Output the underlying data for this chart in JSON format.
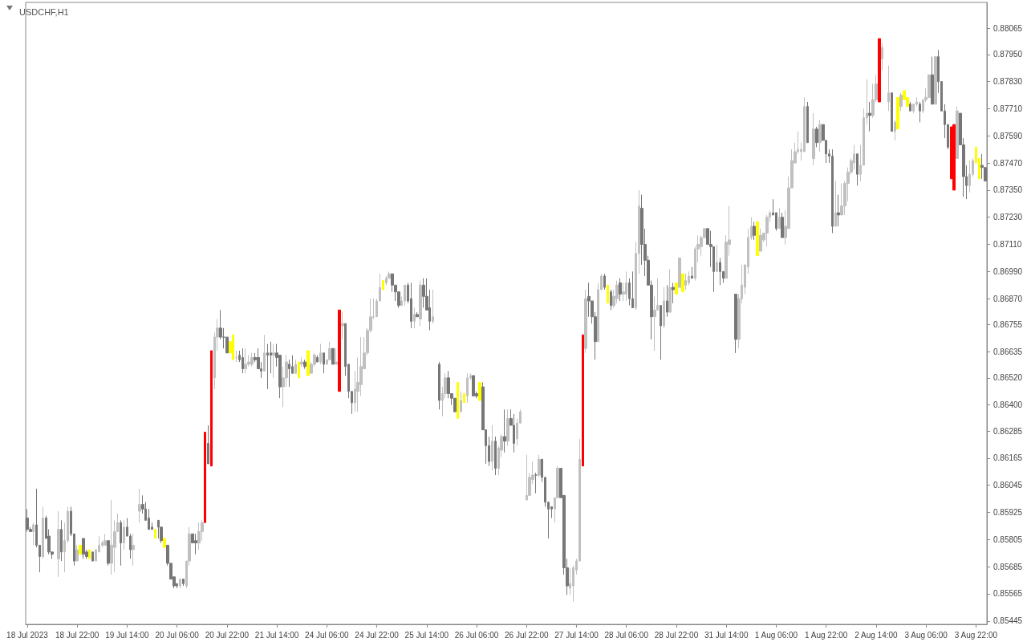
{
  "chart_data": {
    "type": "candlestick",
    "title": "USDCHF,H1",
    "categories": [
      "18 Jul 2023",
      null,
      null,
      null,
      null,
      null,
      null,
      null,
      null,
      null,
      null,
      null,
      null,
      null,
      null,
      null,
      "18 Jul 22:00",
      null,
      null,
      null,
      null,
      null,
      null,
      null,
      null,
      null,
      null,
      null,
      null,
      null,
      null,
      null,
      "19 Jul 14:00",
      null,
      null,
      null,
      null,
      null,
      null,
      null,
      null,
      null,
      null,
      null,
      null,
      null,
      null,
      null,
      "20 Jul 06:00",
      null,
      null,
      null,
      null,
      null,
      null,
      null,
      null,
      null,
      null,
      null,
      null,
      null,
      null,
      null,
      "20 Jul 22:00",
      null,
      null,
      null,
      null,
      null,
      null,
      null,
      null,
      null,
      null,
      null,
      null,
      null,
      null,
      null,
      "21 Jul 14:00",
      null,
      null,
      null,
      null,
      null,
      null,
      null,
      null,
      null,
      null,
      null,
      null,
      null,
      null,
      null,
      "24 Jul 06:00",
      null,
      null,
      null,
      null,
      null,
      null,
      null,
      null,
      null,
      null,
      null,
      null,
      null,
      null,
      null,
      "24 Jul 22:00",
      null,
      null,
      null,
      null,
      null,
      null,
      null,
      null,
      null,
      null,
      null,
      null,
      null,
      null,
      null,
      "25 Jul 14:00",
      null,
      null,
      null,
      null,
      null,
      null,
      null,
      null,
      null,
      null,
      null,
      null,
      null,
      null,
      null,
      "26 Jul 06:00",
      null,
      null,
      null,
      null,
      null,
      null,
      null,
      null,
      null,
      null,
      null,
      null,
      null,
      null,
      null,
      "26 Jul 22:00",
      null,
      null,
      null,
      null,
      null,
      null,
      null,
      null,
      null,
      null,
      null,
      null,
      null,
      null,
      null,
      "27 Jul 14:00",
      null,
      null,
      null,
      null,
      null,
      null,
      null,
      null,
      null,
      null,
      null,
      null,
      null,
      null,
      null,
      "28 Jul 06:00",
      null,
      null,
      null,
      null,
      null,
      null,
      null,
      null,
      null,
      null,
      null,
      null,
      null,
      null,
      null,
      "28 Jul 22:00",
      null,
      null,
      null,
      null,
      null,
      null,
      null,
      null,
      null,
      null,
      null,
      null,
      null,
      null,
      null,
      "31 Jul 14:00",
      null,
      null,
      null,
      null,
      null,
      null,
      null,
      null,
      null,
      null,
      null,
      null,
      null,
      null,
      null,
      "1 Aug 06:00",
      null,
      null,
      null,
      null,
      null,
      null,
      null,
      null,
      null,
      null,
      null,
      null,
      null,
      null,
      null,
      "1 Aug 22:00",
      null,
      null,
      null,
      null,
      null,
      null,
      null,
      null,
      null,
      null,
      null,
      null,
      null,
      null,
      null,
      "2 Aug 14:00",
      null,
      null,
      null,
      null,
      null,
      null,
      null,
      null,
      null,
      null,
      null,
      null,
      null,
      null,
      null,
      "3 Aug 06:00",
      null,
      null,
      null,
      null,
      null,
      null,
      null,
      null,
      null,
      null,
      null,
      null,
      null,
      null,
      null,
      "3 Aug 22:00",
      null,
      null,
      null
    ],
    "ohlc": [
      [
        0.859,
        0.8594,
        0.8584,
        0.8585
      ],
      [
        0.8585,
        0.8586,
        0.8584,
        0.8584
      ],
      [
        0.8584,
        0.8588,
        0.8578,
        0.8587
      ],
      [
        0.8587,
        0.8603,
        0.8577,
        0.8578
      ],
      [
        0.8578,
        0.8578,
        0.8566,
        0.8573
      ],
      [
        0.8573,
        0.8595,
        0.8572,
        0.859
      ],
      [
        0.859,
        0.8591,
        0.8581,
        0.8581
      ],
      [
        0.8582,
        0.8585,
        0.8574,
        0.8575
      ],
      [
        0.8575,
        0.8575,
        0.8572,
        0.8574
      ],
      null,
      [
        0.8572,
        0.8593,
        0.8564,
        0.8585
      ],
      [
        0.8585,
        0.8589,
        0.8571,
        0.8575
      ],
      [
        0.8575,
        0.8588,
        0.8566,
        0.858
      ],
      [
        0.858,
        0.8595,
        0.8579,
        0.8593
      ],
      [
        0.8593,
        0.8595,
        0.8582,
        0.8583
      ],
      [
        0.8583,
        0.8583,
        0.8569,
        0.8571
      ],
      [
        0.8571,
        0.8578,
        0.8571,
        0.8576
      ],
      [
        0.8578,
        0.8578,
        0.8574,
        0.8574
      ],
      [
        0.8581,
        0.8581,
        0.8572,
        0.8574
      ],
      [
        0.8575,
        0.8576,
        0.8572,
        0.8573
      ],
      [
        0.8576,
        0.8576,
        0.8572,
        0.8572
      ],
      [
        0.8575,
        0.8575,
        0.8571,
        0.8571
      ],
      [
        0.8571,
        0.8576,
        0.8571,
        0.8576
      ],
      [
        0.8575,
        0.8582,
        0.8575,
        0.8578
      ],
      [
        0.8578,
        0.858,
        0.8577,
        0.8579
      ],
      [
        0.8578,
        0.8583,
        0.8578,
        0.858
      ],
      [
        0.858,
        0.858,
        0.8569,
        0.857
      ],
      [
        0.857,
        0.8598,
        0.8565,
        0.8578
      ],
      [
        0.8577,
        0.8589,
        0.8566,
        0.8584
      ],
      [
        0.8584,
        0.8592,
        0.8584,
        0.8588
      ],
      [
        0.8588,
        0.8589,
        0.8569,
        0.8579
      ],
      [
        0.8579,
        0.8589,
        0.8576,
        0.8586
      ],
      [
        0.8586,
        0.859,
        0.8582,
        0.8582
      ],
      [
        0.8582,
        0.8583,
        0.8572,
        0.8576
      ],
      [
        0.8576,
        0.8583,
        0.8569,
        0.8578
      ],
      null,
      [
        0.8593,
        0.8603,
        0.8588,
        0.8596
      ],
      [
        0.8596,
        0.86,
        0.8592,
        0.8594
      ],
      [
        0.8594,
        0.8597,
        0.8589,
        0.8589
      ],
      [
        0.859,
        0.8594,
        0.8585,
        0.8585
      ],
      [
        0.8586,
        0.8588,
        0.8585,
        0.8585
      ],
      [
        0.8585,
        0.8585,
        0.8581,
        0.8581
      ],
      [
        0.8589,
        0.8589,
        0.8581,
        0.8586
      ],
      [
        0.8586,
        0.8586,
        0.8579,
        0.858
      ],
      [
        0.8581,
        0.8581,
        0.8577,
        0.8577
      ],
      [
        0.8578,
        0.8578,
        0.8569,
        0.857
      ],
      [
        0.857,
        0.857,
        0.8563,
        0.8563
      ],
      [
        0.8564,
        0.8564,
        0.8559,
        0.856
      ],
      [
        0.8561,
        0.8561,
        0.8559,
        0.856
      ],
      [
        0.856,
        0.8563,
        0.8559,
        0.8563
      ],
      [
        0.8563,
        0.8563,
        0.856,
        0.8561
      ],
      [
        0.856,
        0.8571,
        0.8559,
        0.8571
      ],
      [
        0.8571,
        0.8586,
        0.8569,
        0.8583
      ],
      [
        0.8583,
        0.8583,
        0.8579,
        0.8579
      ],
      [
        0.858,
        0.8583,
        0.8574,
        0.8579
      ],
      [
        0.8579,
        0.8588,
        0.8576,
        0.8584
      ],
      [
        0.8584,
        0.8589,
        0.858,
        0.8588
      ],
      [
        0.8588,
        0.8628,
        0.8588,
        0.8628
      ],
      [
        0.8623,
        0.8631,
        0.8614,
        0.8614
      ],
      [
        0.8613,
        0.8664,
        0.8613,
        0.8664
      ],
      [
        0.8652,
        0.8672,
        0.8647,
        0.867
      ],
      [
        0.867,
        0.8678,
        0.8664,
        0.8674
      ],
      [
        0.8674,
        0.8682,
        0.8669,
        0.867
      ],
      [
        0.867,
        0.8674,
        0.8665,
        0.867
      ],
      [
        0.867,
        0.867,
        0.8663,
        0.8663
      ],
      [
        0.8663,
        0.8668,
        0.8663,
        0.8668
      ],
      [
        0.8671,
        0.8671,
        0.866,
        0.866
      ],
      [
        0.8661,
        0.8664,
        0.8659,
        0.8661
      ],
      [
        0.8662,
        0.8664,
        0.8659,
        0.866
      ],
      [
        0.8661,
        0.8665,
        0.8654,
        0.8656
      ],
      [
        0.8656,
        0.8665,
        0.8654,
        0.8658
      ],
      [
        0.8658,
        0.8662,
        0.8657,
        0.8659
      ],
      [
        0.8658,
        0.8663,
        0.8657,
        0.8661
      ],
      [
        0.8661,
        0.8663,
        0.8659,
        0.866
      ],
      [
        0.8661,
        0.8665,
        0.8656,
        0.8656
      ],
      [
        0.8656,
        0.8659,
        0.8652,
        0.8655
      ],
      [
        0.8655,
        0.8671,
        0.8655,
        0.8663
      ],
      [
        0.8663,
        0.8667,
        0.8647,
        0.8662
      ],
      [
        0.8663,
        0.8668,
        0.8654,
        0.8662
      ],
      [
        0.8662,
        0.8667,
        0.8652,
        0.8663
      ],
      [
        0.8663,
        0.8667,
        0.8657,
        0.8661
      ],
      [
        0.8662,
        0.8662,
        0.8643,
        0.8648
      ],
      [
        0.8648,
        0.8657,
        0.8639,
        0.8652
      ],
      [
        0.8652,
        0.8662,
        0.8648,
        0.8659
      ],
      [
        0.8658,
        0.866,
        0.8648,
        0.8656
      ],
      [
        0.8657,
        0.8662,
        0.8654,
        0.8654
      ],
      [
        0.8654,
        0.866,
        0.8654,
        0.8658
      ],
      [
        0.8659,
        0.8659,
        0.8652,
        0.8652
      ],
      [
        0.8658,
        0.8661,
        0.8657,
        0.8659
      ],
      [
        0.8659,
        0.866,
        0.8656,
        0.8657
      ],
      [
        0.8653,
        0.8664,
        0.8653,
        0.8664
      ],
      [
        0.8654,
        0.8659,
        0.8654,
        0.8658
      ],
      [
        0.8658,
        0.8663,
        0.8657,
        0.8662
      ],
      [
        0.8661,
        0.8662,
        0.8659,
        0.8659
      ],
      [
        0.8659,
        0.8667,
        0.8658,
        0.8663
      ],
      [
        0.8663,
        0.8663,
        0.8654,
        0.8658
      ],
      [
        0.8658,
        0.866,
        0.8658,
        0.866
      ],
      [
        0.866,
        0.8668,
        0.866,
        0.8665
      ],
      [
        0.8665,
        0.8665,
        0.8658,
        0.8658
      ],
      [
        0.8658,
        0.8665,
        0.8658,
        0.8659
      ],
      [
        0.8646,
        0.8682,
        0.8646,
        0.8682
      ],
      [
        0.8675,
        0.8681,
        0.8669,
        0.8676
      ],
      [
        0.8676,
        0.8676,
        0.8653,
        0.8657
      ],
      [
        0.8658,
        0.8658,
        0.8643,
        0.8646
      ],
      [
        0.8646,
        0.8646,
        0.8636,
        0.8641
      ],
      [
        0.8641,
        0.8655,
        0.8637,
        0.8647
      ],
      [
        0.8646,
        0.8661,
        0.8637,
        0.865
      ],
      [
        0.8649,
        0.867,
        0.8644,
        0.8657
      ],
      [
        0.8656,
        0.867,
        0.8656,
        0.8663
      ],
      [
        0.8663,
        0.8674,
        0.8662,
        0.8673
      ],
      [
        0.8673,
        0.8687,
        0.8672,
        0.8679
      ],
      [
        0.8679,
        0.8687,
        0.8678,
        0.8679
      ],
      [
        0.8679,
        0.8687,
        0.8679,
        0.8686
      ],
      [
        0.8686,
        0.8698,
        0.8686,
        0.8692
      ],
      [
        0.8691,
        0.8695,
        0.8691,
        0.8695
      ],
      [
        0.8694,
        0.8697,
        0.8693,
        0.8696
      ],
      [
        0.8696,
        0.8699,
        0.8696,
        0.8698
      ],
      [
        0.8698,
        0.8698,
        0.869,
        0.8693
      ],
      [
        0.8693,
        0.8693,
        0.8686,
        0.869
      ],
      [
        0.869,
        0.869,
        0.8683,
        0.8684
      ],
      [
        0.8684,
        0.8688,
        0.8684,
        0.8686
      ],
      [
        0.8686,
        0.8693,
        0.8684,
        0.8693
      ],
      [
        0.8693,
        0.8694,
        0.8685,
        0.8686
      ],
      [
        0.8687,
        0.8694,
        0.8674,
        0.8677
      ],
      [
        0.8677,
        0.8683,
        0.8674,
        0.868
      ],
      [
        0.868,
        0.8681,
        0.8679,
        0.8679
      ],
      [
        0.8678,
        0.8695,
        0.8675,
        0.8693
      ],
      [
        0.8693,
        0.8696,
        0.8683,
        0.8688
      ],
      [
        0.8688,
        0.8696,
        0.8682,
        0.8682
      ],
      [
        0.8683,
        0.8691,
        0.8673,
        0.8677
      ],
      [
        0.8677,
        0.8691,
        0.8676,
        0.8679
      ],
      null,
      [
        0.8658,
        0.8659,
        0.8638,
        0.8642
      ],
      [
        0.8642,
        0.8648,
        0.8635,
        0.8645
      ],
      [
        0.8645,
        0.8654,
        0.8643,
        0.8652
      ],
      [
        0.8652,
        0.8655,
        0.8643,
        0.8645
      ],
      [
        0.8645,
        0.8645,
        0.864,
        0.8643
      ],
      [
        0.8643,
        0.8643,
        0.8637,
        0.8637
      ],
      [
        0.865,
        0.865,
        0.8634,
        0.8634
      ],
      [
        0.8637,
        0.8646,
        0.8637,
        0.8642
      ],
      [
        0.8645,
        0.8645,
        0.8641,
        0.8641
      ],
      [
        0.8644,
        0.8654,
        0.8641,
        0.8652
      ],
      [
        0.8652,
        0.8654,
        0.8651,
        0.8653
      ],
      [
        0.8653,
        0.8653,
        0.8644,
        0.8644
      ],
      [
        0.8645,
        0.8646,
        0.8643,
        0.8644
      ],
      [
        0.8642,
        0.865,
        0.8642,
        0.865
      ],
      [
        0.8648,
        0.865,
        0.8629,
        0.8629
      ],
      [
        0.8629,
        0.8629,
        0.8614,
        0.8622
      ],
      [
        0.8622,
        0.8626,
        0.8613,
        0.8615
      ],
      [
        0.8615,
        0.8631,
        0.8611,
        0.8624
      ],
      [
        0.8624,
        0.8626,
        0.8609,
        0.8612
      ],
      [
        0.8612,
        0.8622,
        0.8609,
        0.8621
      ],
      [
        0.862,
        0.8627,
        0.8617,
        0.8626
      ],
      [
        0.8626,
        0.8638,
        0.8619,
        0.8624
      ],
      [
        0.8624,
        0.8638,
        0.8622,
        0.8634
      ],
      [
        0.8634,
        0.8638,
        0.8631,
        0.8631
      ],
      [
        0.8631,
        0.8636,
        0.8619,
        0.8623
      ],
      [
        0.8625,
        0.8634,
        0.8622,
        0.8632
      ],
      [
        0.8632,
        0.8638,
        0.8632,
        0.8637
      ],
      null,
      [
        0.8598,
        0.8618,
        0.8598,
        0.86
      ],
      [
        0.86,
        0.861,
        0.86,
        0.8608
      ],
      [
        0.8607,
        0.8615,
        0.8605,
        0.8609
      ],
      [
        0.8609,
        0.861,
        0.8601,
        0.8609
      ],
      [
        0.8609,
        0.8618,
        0.8608,
        0.8616
      ],
      [
        0.8616,
        0.8616,
        0.8606,
        0.8608
      ],
      [
        0.8608,
        0.8608,
        0.8595,
        0.8597
      ],
      [
        0.8597,
        0.8597,
        0.8581,
        0.8594
      ],
      [
        0.8595,
        0.8595,
        0.859,
        0.8594
      ],
      [
        0.8594,
        0.8599,
        0.8588,
        0.8599
      ],
      [
        0.8599,
        0.8613,
        0.8599,
        0.8612
      ],
      [
        0.8612,
        0.8612,
        0.8599,
        0.8599
      ],
      [
        0.86,
        0.86,
        0.8565,
        0.8568
      ],
      [
        0.8568,
        0.8572,
        0.8556,
        0.856
      ],
      [
        0.8559,
        0.8568,
        0.8556,
        0.8561
      ],
      [
        0.856,
        0.8569,
        0.8553,
        0.8568
      ],
      [
        0.8567,
        0.8572,
        0.8565,
        0.8571
      ],
      [
        0.8571,
        0.8625,
        0.8571,
        0.8616
      ],
      [
        0.8613,
        0.8671,
        0.8613,
        0.8671
      ],
      [
        0.8665,
        0.8691,
        0.8663,
        0.8687
      ],
      [
        0.8688,
        0.8694,
        0.8679,
        0.8686
      ],
      [
        0.8686,
        0.8686,
        0.8676,
        0.8679
      ],
      [
        0.8679,
        0.8681,
        0.866,
        0.8668
      ],
      [
        0.8668,
        0.8694,
        0.8668,
        0.8691
      ],
      [
        0.8691,
        0.8698,
        0.8691,
        0.8697
      ],
      [
        0.8697,
        0.8698,
        0.8691,
        0.8692
      ],
      [
        0.8693,
        0.8693,
        0.8685,
        0.8685
      ],
      [
        0.869,
        0.8691,
        0.8682,
        0.8684
      ],
      [
        0.8684,
        0.8691,
        0.8683,
        0.8688
      ],
      [
        0.8687,
        0.8695,
        0.8685,
        0.8693
      ],
      [
        0.8694,
        0.8696,
        0.8686,
        0.8689
      ],
      [
        0.8689,
        0.8694,
        0.8686,
        0.869
      ],
      [
        0.8689,
        0.8699,
        0.8686,
        0.8694
      ],
      [
        0.8694,
        0.8696,
        0.8684,
        0.8687
      ],
      [
        0.8687,
        0.8699,
        0.8683,
        0.8683
      ],
      [
        0.8683,
        0.8712,
        0.8682,
        0.8707
      ],
      [
        0.8707,
        0.8735,
        0.8698,
        0.8728
      ],
      [
        0.8727,
        0.8733,
        0.8702,
        0.8711
      ],
      [
        0.8711,
        0.8718,
        0.8697,
        0.8704
      ],
      [
        0.8704,
        0.8706,
        0.8693,
        0.8693
      ],
      [
        0.8693,
        0.8695,
        0.8669,
        0.8679
      ],
      [
        0.8679,
        0.8688,
        0.8664,
        0.8682
      ],
      [
        0.8682,
        0.8696,
        0.8682,
        0.8684
      ],
      [
        0.8684,
        0.8684,
        0.866,
        0.8675
      ],
      [
        0.8675,
        0.8692,
        0.8674,
        0.8686
      ],
      [
        0.8686,
        0.8693,
        0.8679,
        0.8681
      ],
      [
        0.8681,
        0.87,
        0.8681,
        0.8692
      ],
      [
        0.8692,
        0.8694,
        0.8685,
        0.8691
      ],
      [
        0.8689,
        0.8694,
        0.8689,
        0.8694
      ],
      [
        0.8692,
        0.8705,
        0.8692,
        0.8705
      ],
      [
        0.8698,
        0.8698,
        0.869,
        0.869
      ],
      [
        0.8693,
        0.8698,
        0.8691,
        0.8695
      ],
      [
        0.8694,
        0.8699,
        0.8693,
        0.8697
      ],
      [
        0.8697,
        0.8701,
        0.8696,
        0.8696
      ],
      [
        0.8696,
        0.871,
        0.8695,
        0.8709
      ],
      [
        0.8709,
        0.8715,
        0.8703,
        0.8711
      ],
      [
        0.871,
        0.8715,
        0.8706,
        0.8714
      ],
      [
        0.8714,
        0.8718,
        0.8714,
        0.8718
      ],
      [
        0.8718,
        0.8718,
        0.8711,
        0.8711
      ],
      [
        0.8711,
        0.8717,
        0.8701,
        0.871
      ],
      [
        0.871,
        0.871,
        0.869,
        0.8699
      ],
      [
        0.8699,
        0.8711,
        0.8699,
        0.8703
      ],
      [
        0.8703,
        0.8705,
        0.8693,
        0.8699
      ],
      [
        0.8699,
        0.8699,
        0.8694,
        0.8696
      ],
      [
        0.8696,
        0.8715,
        0.8696,
        0.8712
      ],
      [
        0.8711,
        0.8728,
        0.8706,
        0.8713
      ],
      null,
      [
        0.8689,
        0.8689,
        0.8663,
        0.8669
      ],
      [
        0.8669,
        0.8689,
        0.8665,
        0.8687
      ],
      [
        0.8687,
        0.8702,
        0.8685,
        0.8693
      ],
      [
        0.8692,
        0.8702,
        0.8689,
        0.8702
      ],
      [
        0.8701,
        0.8718,
        0.8698,
        0.8714
      ],
      [
        0.8714,
        0.8723,
        0.8713,
        0.8719
      ],
      [
        0.8719,
        0.8721,
        0.8713,
        0.8715
      ],
      [
        0.8721,
        0.8721,
        0.8706,
        0.8706
      ],
      [
        0.8708,
        0.8718,
        0.8708,
        0.8715
      ],
      [
        0.8713,
        0.8716,
        0.8712,
        0.8716
      ],
      [
        0.8716,
        0.8724,
        0.871,
        0.8723
      ],
      [
        0.8723,
        0.8726,
        0.8721,
        0.8725
      ],
      [
        0.8725,
        0.8731,
        0.8724,
        0.8724
      ],
      [
        0.8725,
        0.8725,
        0.8717,
        0.8718
      ],
      [
        0.8718,
        0.8727,
        0.8718,
        0.8723
      ],
      [
        0.8723,
        0.8725,
        0.8714,
        0.8714
      ],
      [
        0.8714,
        0.8726,
        0.8711,
        0.8719
      ],
      [
        0.8718,
        0.8741,
        0.8718,
        0.8736
      ],
      [
        0.8736,
        0.8753,
        0.8736,
        0.8748
      ],
      [
        0.8747,
        0.8756,
        0.8747,
        0.8752
      ],
      [
        0.8752,
        0.8761,
        0.8751,
        0.8753
      ],
      [
        0.8752,
        0.8756,
        0.8748,
        0.8753
      ],
      [
        0.8752,
        0.8776,
        0.8752,
        0.8772
      ],
      [
        0.8772,
        0.8774,
        0.8756,
        0.8756
      ],
      null,
      [
        0.8749,
        0.8769,
        0.8746,
        0.8762
      ],
      [
        0.8762,
        0.8763,
        0.8754,
        0.8756
      ],
      [
        0.8756,
        0.8766,
        0.8752,
        0.8764
      ],
      [
        0.8764,
        0.8764,
        0.8757,
        0.8757
      ],
      [
        0.8757,
        0.8757,
        0.8747,
        0.8751
      ],
      [
        0.8751,
        0.8753,
        0.8747,
        0.875
      ],
      [
        0.875,
        0.8753,
        0.8716,
        0.8719
      ],
      [
        0.8719,
        0.8739,
        0.8719,
        0.8725
      ],
      [
        0.8725,
        0.8733,
        0.8719,
        0.8724
      ],
      [
        0.8724,
        0.8738,
        0.8724,
        0.8728
      ],
      [
        0.8728,
        0.8739,
        0.8724,
        0.8738
      ],
      [
        0.8738,
        0.8745,
        0.873,
        0.8743
      ],
      [
        0.8743,
        0.8749,
        0.8742,
        0.8748
      ],
      [
        0.8747,
        0.8755,
        0.8744,
        0.8751
      ],
      [
        0.8751,
        0.8751,
        0.8737,
        0.8742
      ],
      [
        0.8742,
        0.8755,
        0.8739,
        0.8746
      ],
      [
        0.8746,
        0.8771,
        0.8746,
        0.8767
      ],
      [
        0.8767,
        0.8784,
        0.8764,
        0.8769
      ],
      [
        0.8769,
        0.8774,
        0.8761,
        0.8768
      ],
      [
        0.8768,
        0.8782,
        0.8767,
        0.8775
      ],
      [
        0.8775,
        0.8786,
        0.8774,
        0.8782
      ],
      [
        0.8774,
        0.8802,
        0.8774,
        0.8802
      ],
      [
        0.8793,
        0.88,
        0.8788,
        0.8798
      ],
      null,
      [
        0.8774,
        0.879,
        0.877,
        0.8778
      ],
      [
        0.8778,
        0.8778,
        0.8761,
        0.8761
      ],
      [
        0.8761,
        0.8766,
        0.8757,
        0.8765
      ],
      [
        0.8762,
        0.8776,
        0.8762,
        0.8776
      ],
      [
        0.8772,
        0.8778,
        0.877,
        0.8777
      ],
      [
        0.8775,
        0.8779,
        0.8775,
        0.8779
      ],
      [
        0.8776,
        0.8776,
        0.8772,
        0.8772
      ],
      [
        0.8773,
        0.8774,
        0.877,
        0.877
      ],
      [
        0.877,
        0.8773,
        0.8769,
        0.8773
      ],
      [
        0.8773,
        0.8776,
        0.8772,
        0.8774
      ],
      [
        0.8773,
        0.8774,
        0.8765,
        0.877
      ],
      [
        0.877,
        0.8775,
        0.8769,
        0.8775
      ],
      [
        0.8775,
        0.878,
        0.8774,
        0.8776
      ],
      [
        0.8776,
        0.8786,
        0.8776,
        0.8786
      ],
      [
        0.8786,
        0.8794,
        0.8773,
        0.8773
      ],
      [
        0.8773,
        0.8794,
        0.8773,
        0.8794
      ],
      [
        0.8794,
        0.8797,
        0.8778,
        0.8783
      ],
      [
        0.8783,
        0.8783,
        0.877,
        0.877
      ],
      [
        0.877,
        0.8773,
        0.8758,
        0.8764
      ],
      [
        0.8764,
        0.8764,
        0.8753,
        0.8754
      ],
      [
        0.8763,
        0.8763,
        0.874,
        0.874
      ],
      [
        0.8764,
        0.8764,
        0.8735,
        0.8735
      ],
      [
        0.8749,
        0.8772,
        0.8749,
        0.877
      ],
      [
        0.8769,
        0.8769,
        0.8755,
        0.8755
      ],
      [
        0.8755,
        0.8758,
        0.8732,
        0.8741
      ],
      [
        0.8741,
        0.8746,
        0.8731,
        0.8737
      ],
      [
        0.8737,
        0.8748,
        0.8734,
        0.8742
      ],
      [
        0.8742,
        0.8749,
        0.8741,
        0.8748
      ],
      [
        0.8747,
        0.8754,
        0.8747,
        0.8754
      ],
      [
        0.8749,
        0.8749,
        0.874,
        0.874
      ],
      [
        0.8746,
        0.8751,
        0.874,
        0.8745
      ],
      [
        0.8745,
        0.8745,
        0.8739,
        0.8739
      ]
    ],
    "colors": [
      "#777777",
      "#777777",
      "#c0c0c0",
      "#777777",
      "#777777",
      "#c0c0c0",
      "#777777",
      "#777777",
      "#777777",
      null,
      "#c0c0c0",
      "#777777",
      "#c0c0c0",
      "#c0c0c0",
      "#777777",
      "#777777",
      "#c0c0c0",
      "#ffff00",
      "#777777",
      "#777777",
      "#ffff00",
      "#777777",
      "#c0c0c0",
      "#c0c0c0",
      "#c0c0c0",
      "#c0c0c0",
      "#777777",
      "#c0c0c0",
      "#c0c0c0",
      "#c0c0c0",
      "#777777",
      "#c0c0c0",
      "#777777",
      "#777777",
      "#c0c0c0",
      null,
      "#c0c0c0",
      "#777777",
      "#777777",
      "#777777",
      "#777777",
      "#ffff00",
      "#777777",
      "#777777",
      "#ffff00",
      "#777777",
      "#777777",
      "#777777",
      "#777777",
      "#c0c0c0",
      "#777777",
      "#c0c0c0",
      "#c0c0c0",
      "#777777",
      "#777777",
      "#c0c0c0",
      "#c0c0c0",
      "#ff0000",
      "#777777",
      "#ff0000",
      "#c0c0c0",
      "#c0c0c0",
      "#777777",
      "#777777",
      "#777777",
      "#ffff00",
      "#ffff00",
      "#c0c0c0",
      "#777777",
      "#777777",
      "#c0c0c0",
      "#c0c0c0",
      "#c0c0c0",
      "#777777",
      "#777777",
      "#777777",
      "#c0c0c0",
      "#777777",
      "#777777",
      "#c0c0c0",
      "#777777",
      "#777777",
      "#c0c0c0",
      "#c0c0c0",
      "#777777",
      "#777777",
      "#c0c0c0",
      "#ffff00",
      "#c0c0c0",
      "#777777",
      "#ffff00",
      "#c0c0c0",
      "#c0c0c0",
      "#777777",
      "#c0c0c0",
      "#777777",
      "#c0c0c0",
      "#c0c0c0",
      "#777777",
      "#c0c0c0",
      "#ff0000",
      "#c0c0c0",
      "#777777",
      "#777777",
      "#777777",
      "#c0c0c0",
      "#c0c0c0",
      "#c0c0c0",
      "#c0c0c0",
      "#c0c0c0",
      "#c0c0c0",
      "#c0c0c0",
      "#c0c0c0",
      "#c0c0c0",
      "#ffff00",
      "#c0c0c0",
      "#c0c0c0",
      "#777777",
      "#777777",
      "#777777",
      "#c0c0c0",
      "#c0c0c0",
      "#777777",
      "#777777",
      "#c0c0c0",
      "#777777",
      "#c0c0c0",
      "#777777",
      "#777777",
      "#777777",
      "#c0c0c0",
      null,
      "#777777",
      "#c0c0c0",
      "#c0c0c0",
      "#777777",
      "#777777",
      "#777777",
      "#ffff00",
      "#c0c0c0",
      "#ffff00",
      "#c0c0c0",
      "#c0c0c0",
      "#777777",
      "#777777",
      "#ffff00",
      "#777777",
      "#777777",
      "#777777",
      "#c0c0c0",
      "#777777",
      "#c0c0c0",
      "#c0c0c0",
      "#777777",
      "#c0c0c0",
      "#777777",
      "#777777",
      "#c0c0c0",
      "#c0c0c0",
      null,
      "#c0c0c0",
      "#c0c0c0",
      "#c0c0c0",
      "#777777",
      "#c0c0c0",
      "#777777",
      "#777777",
      "#777777",
      "#777777",
      "#c0c0c0",
      "#c0c0c0",
      "#777777",
      "#777777",
      "#777777",
      "#c0c0c0",
      "#c0c0c0",
      "#c0c0c0",
      "#c0c0c0",
      "#ff0000",
      "#c0c0c0",
      "#777777",
      "#777777",
      "#777777",
      "#c0c0c0",
      "#c0c0c0",
      "#777777",
      "#ffff00",
      "#777777",
      "#c0c0c0",
      "#c0c0c0",
      "#777777",
      "#c0c0c0",
      "#c0c0c0",
      "#777777",
      "#777777",
      "#c0c0c0",
      "#c0c0c0",
      "#777777",
      "#777777",
      "#777777",
      "#777777",
      "#c0c0c0",
      "#c0c0c0",
      "#777777",
      "#c0c0c0",
      "#777777",
      "#c0c0c0",
      "#777777",
      "#ffff00",
      "#c0c0c0",
      "#ffff00",
      "#c0c0c0",
      "#c0c0c0",
      "#777777",
      "#c0c0c0",
      "#c0c0c0",
      "#c0c0c0",
      "#c0c0c0",
      "#777777",
      "#777777",
      "#777777",
      "#c0c0c0",
      "#777777",
      "#777777",
      "#c0c0c0",
      "#c0c0c0",
      null,
      "#777777",
      "#c0c0c0",
      "#c0c0c0",
      "#c0c0c0",
      "#c0c0c0",
      "#c0c0c0",
      "#777777",
      "#ffff00",
      "#c0c0c0",
      "#c0c0c0",
      "#c0c0c0",
      "#c0c0c0",
      "#777777",
      "#777777",
      "#c0c0c0",
      "#777777",
      "#c0c0c0",
      "#c0c0c0",
      "#c0c0c0",
      "#c0c0c0",
      "#c0c0c0",
      "#c0c0c0",
      "#c0c0c0",
      "#777777",
      null,
      "#c0c0c0",
      "#777777",
      "#c0c0c0",
      "#777777",
      "#777777",
      "#777777",
      "#777777",
      "#c0c0c0",
      "#777777",
      "#c0c0c0",
      "#c0c0c0",
      "#c0c0c0",
      "#c0c0c0",
      "#c0c0c0",
      "#777777",
      "#c0c0c0",
      "#c0c0c0",
      "#c0c0c0",
      "#777777",
      "#c0c0c0",
      "#c0c0c0",
      "#ff0000",
      "#c0c0c0",
      null,
      "#c0c0c0",
      "#777777",
      "#c0c0c0",
      "#ffff00",
      "#c0c0c0",
      "#ffff00",
      "#ffff00",
      "#777777",
      "#c0c0c0",
      "#c0c0c0",
      "#777777",
      "#c0c0c0",
      "#c0c0c0",
      "#c0c0c0",
      "#777777",
      "#c0c0c0",
      "#777777",
      "#777777",
      "#777777",
      "#777777",
      "#ff0000",
      "#ff0000",
      "#c0c0c0",
      "#777777",
      "#777777",
      "#777777",
      "#c0c0c0",
      "#c0c0c0",
      "#ffff00",
      "#ffff00",
      "#777777",
      "#777777"
    ],
    "ylim": [
      0.8543,
      0.8818
    ],
    "yticks": [
      0.85445,
      0.85565,
      0.85685,
      0.85805,
      0.85925,
      0.86045,
      0.86165,
      0.86285,
      {
        "value": 0.864,
        "label": "0.86400"
      },
      {
        "value": 0.8652,
        "label": "0.86520"
      },
      0.86635,
      0.86755,
      {
        "value": 0.8687,
        "label": "0.86870"
      },
      {
        "value": 0.8699,
        "label": "0.86990"
      },
      {
        "value": 0.8711,
        "label": "0.87110"
      },
      {
        "value": 0.8723,
        "label": "0.87230"
      },
      {
        "value": 0.8735,
        "label": "0.87350"
      },
      {
        "value": 0.8747,
        "label": "0.87470"
      },
      {
        "value": 0.8759,
        "label": "0.87590"
      },
      {
        "value": 0.8771,
        "label": "0.87710"
      },
      {
        "value": 0.8783,
        "label": "0.87830"
      },
      {
        "value": 0.8795,
        "label": "0.87950"
      },
      0.88065
    ]
  }
}
